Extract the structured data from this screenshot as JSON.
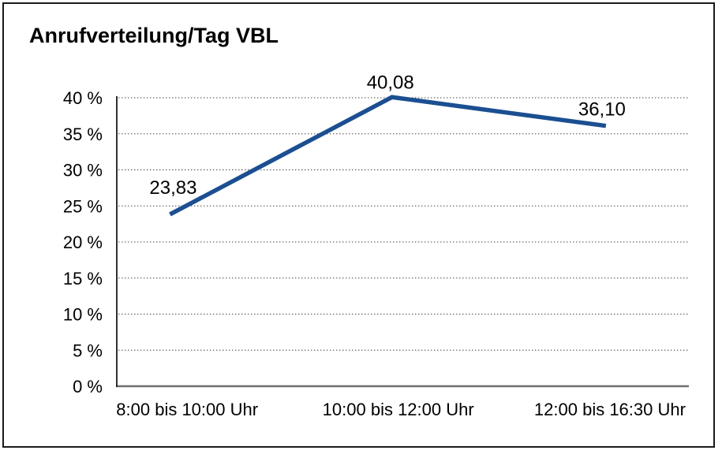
{
  "chart_data": {
    "type": "line",
    "title": "Anrufverteilung/Tag VBL",
    "categories": [
      "8:00 bis 10:00 Uhr",
      "10:00 bis 12:00 Uhr",
      "12:00 bis 16:30 Uhr"
    ],
    "values": [
      23.83,
      40.08,
      36.1
    ],
    "value_labels": [
      "23,83",
      "40,08",
      "36,10"
    ],
    "xlabel": "",
    "ylabel": "",
    "ylim": [
      0,
      40
    ],
    "ytick_step": 5,
    "ytick_labels": [
      "0 %",
      "5 %",
      "10 %",
      "15 %",
      "20 %",
      "25 %",
      "30 %",
      "35 %",
      "40 %"
    ],
    "grid": "horizontal-dotted",
    "legend": "none",
    "series_name": "Anrufverteilung",
    "line_color": "#1b4f91"
  },
  "colors": {
    "line": "#1b4f91",
    "gridline": "#3d3d3d",
    "y_axis": "#1a1a1a",
    "baseline": "#6f6f6f",
    "text": "#000000",
    "frame_border": "#1a1a1a",
    "background": "#ffffff"
  }
}
